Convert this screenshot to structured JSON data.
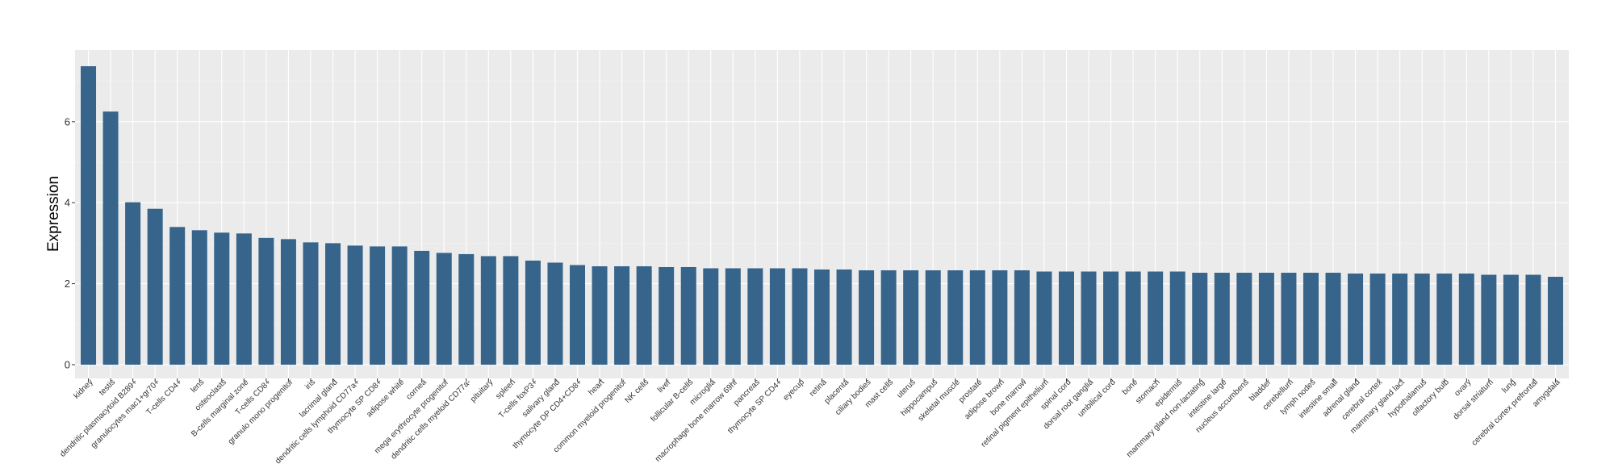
{
  "chart_data": {
    "type": "bar",
    "title": "",
    "xlabel": "",
    "ylabel": "Expression",
    "ylim": [
      -0.34,
      7.77
    ],
    "yticks": [
      0,
      2,
      4,
      6
    ],
    "grid": true,
    "bar_color": "#36648b",
    "panel_color": "#ebebeb",
    "categories": [
      "kidney",
      "testis",
      "dendritic plasmacytoid B289+",
      "granulocytes mac1+gr70+",
      "T-cells CD4+",
      "lens",
      "osteoclasts",
      "B-cells marginal zone",
      "T-cells CD8+",
      "granulo mono progenitor",
      "iris",
      "lacrimal gland",
      "dendritic cells lymphoid CD77a+",
      "thymocyte SP CD8+",
      "adipose white",
      "cornea",
      "mega erythrocyte progenitor",
      "dendritic cells myeloid CD77a-",
      "pituitary",
      "spleen",
      "T-cells foxP3+",
      "salivary gland",
      "thymocyte DP CD4+CD8+",
      "heart",
      "common myeloid progenitor",
      "NK cells",
      "liver",
      "follicular B-cells",
      "microglia",
      "macrophage bone marrow 69hr",
      "pancreas",
      "thymocyte SP CD4+",
      "eyecup",
      "retina",
      "placenta",
      "ciliary bodies",
      "mast cells",
      "uterus",
      "hippocampus",
      "skeletal muscle",
      "prostate",
      "adipose brown",
      "bone marrow",
      "retinal pigment epithelium",
      "spinal cord",
      "dorsal root ganglia",
      "umbilical cord",
      "bone",
      "stomach",
      "epidermis",
      "mammary gland non-lactating",
      "intestine large",
      "nucleus accumbens",
      "bladder",
      "cerebellum",
      "lymph nodes",
      "intestine small",
      "adrenal gland",
      "cerebral cortex",
      "mammary gland  lact",
      "hypothalamus",
      "olfactory bulb",
      "ovary",
      "dorsal striatum",
      "lung",
      "cerebral cortex prefrontal",
      "amygdala"
    ],
    "values": [
      7.37,
      6.25,
      4.01,
      3.85,
      3.4,
      3.32,
      3.26,
      3.24,
      3.13,
      3.1,
      3.02,
      3.0,
      2.94,
      2.92,
      2.92,
      2.81,
      2.76,
      2.73,
      2.68,
      2.68,
      2.57,
      2.52,
      2.46,
      2.43,
      2.43,
      2.43,
      2.41,
      2.41,
      2.38,
      2.38,
      2.38,
      2.38,
      2.38,
      2.35,
      2.35,
      2.33,
      2.33,
      2.33,
      2.33,
      2.33,
      2.33,
      2.33,
      2.33,
      2.3,
      2.3,
      2.3,
      2.3,
      2.3,
      2.3,
      2.3,
      2.27,
      2.27,
      2.27,
      2.27,
      2.27,
      2.27,
      2.27,
      2.25,
      2.25,
      2.25,
      2.25,
      2.25,
      2.25,
      2.22,
      2.22,
      2.22,
      2.17
    ]
  }
}
